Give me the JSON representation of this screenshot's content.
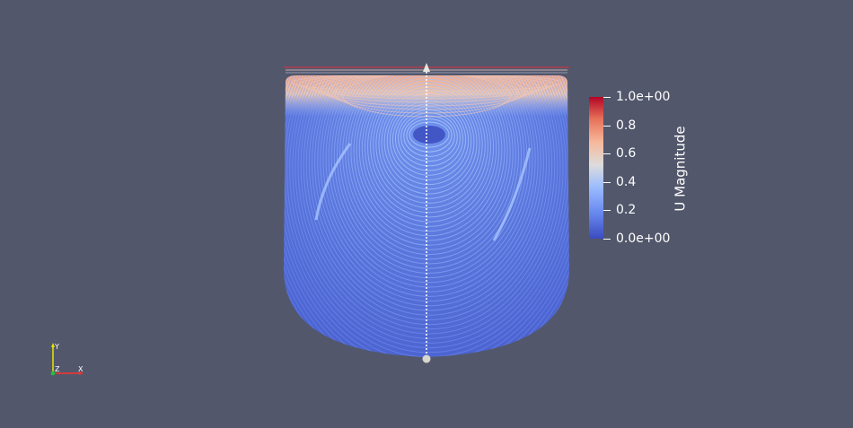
{
  "viewer": {
    "background_color": "#52576b"
  },
  "scene": {
    "description_icon": "streamlines-render",
    "colormap": "cool-to-warm",
    "top_marker_icon": "arrow-handle-icon",
    "bottom_marker_icon": "sphere-handle-icon"
  },
  "colorbar": {
    "title": "U Magnitude",
    "range": [
      0,
      1
    ],
    "ticks": [
      {
        "value": 1.0,
        "label": "1.0e+00"
      },
      {
        "value": 0.8,
        "label": "0.8"
      },
      {
        "value": 0.6,
        "label": "0.6"
      },
      {
        "value": 0.4,
        "label": "0.4"
      },
      {
        "value": 0.2,
        "label": "0.2"
      },
      {
        "value": 0.0,
        "label": "0.0e+00"
      }
    ],
    "colors": {
      "low": "#3b4cc0",
      "mid": "#dddcdc",
      "high": "#b40426"
    }
  },
  "axes": {
    "x_label": "X",
    "y_label": "Y",
    "z_label": "Z",
    "x_color": "#ff3030",
    "y_color": "#e8e800",
    "z_color": "#20c040"
  }
}
